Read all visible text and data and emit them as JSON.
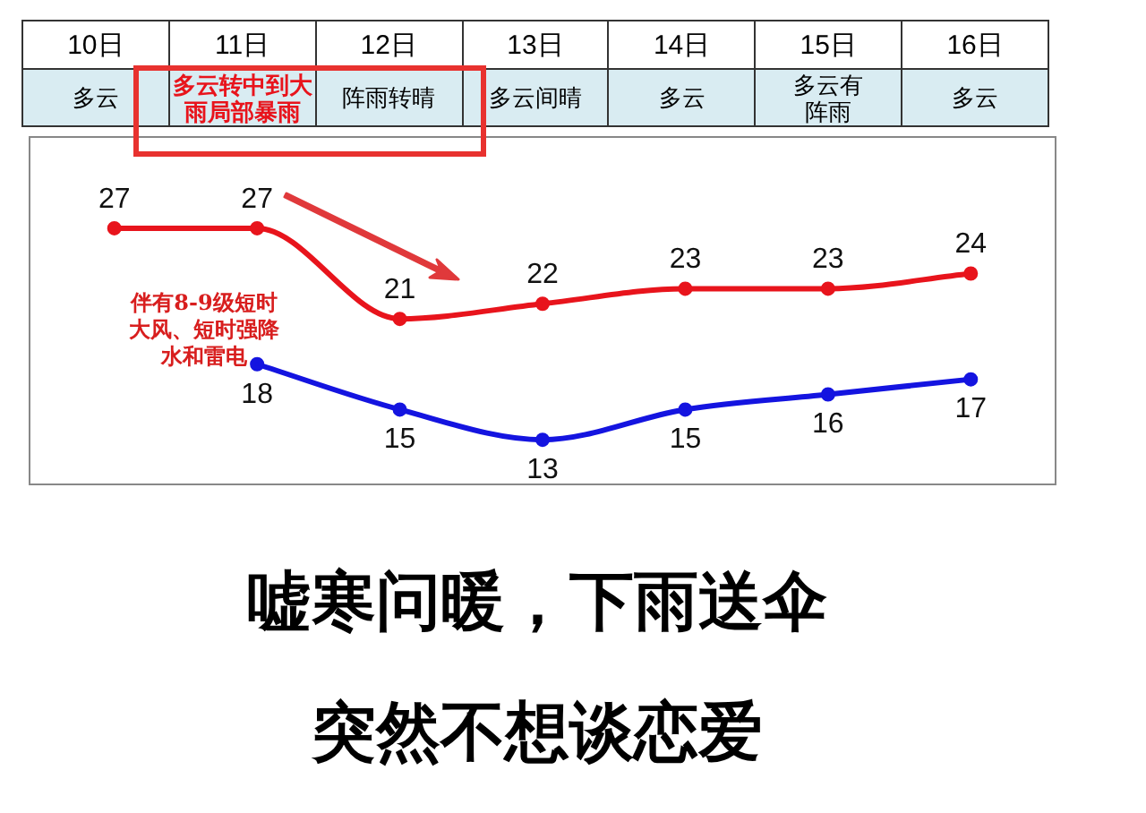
{
  "chart_data": {
    "type": "line",
    "categories": [
      "10日",
      "11日",
      "12日",
      "13日",
      "14日",
      "15日",
      "16日"
    ],
    "series": [
      {
        "color": "#e8141c",
        "values": [
          27,
          27,
          21,
          22,
          23,
          23,
          24
        ]
      },
      {
        "color": "#1414e0",
        "values": [
          null,
          18,
          15,
          13,
          15,
          16,
          17
        ]
      }
    ],
    "data_labels": true,
    "marker": "circle",
    "line_style": "solid",
    "legend": false,
    "annotations": [
      "多云",
      "多云转中到大雨局部暴雨",
      "阵雨转晴",
      "多云间晴",
      "多云",
      "多云有阵雨",
      "多云",
      "伴有8-9级短时大风、短时强降水和雷电",
      "嘘寒问暖，下雨送伞",
      "突然不想谈恋爱"
    ]
  }
}
